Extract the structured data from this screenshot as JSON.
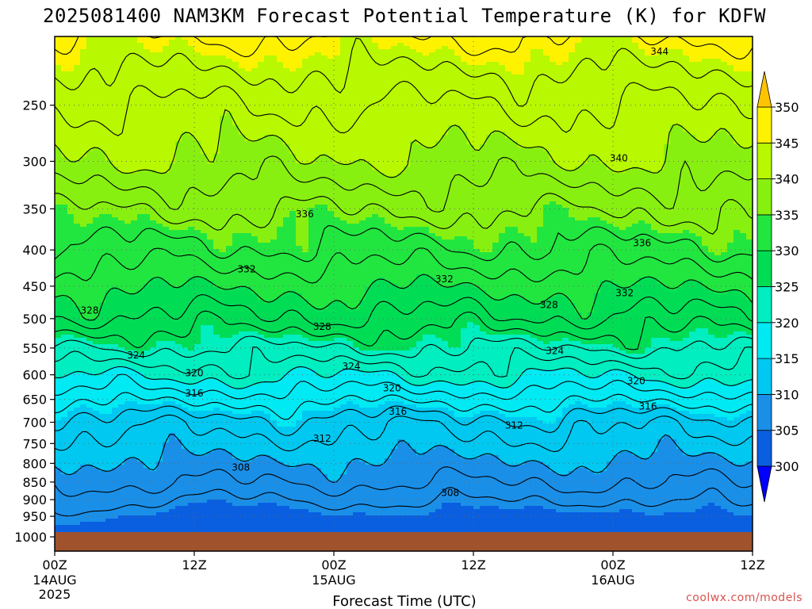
{
  "title": "2025081400 NAM3KM Forecast Potential Temperature (K) for KDFW",
  "credit": "coolwx.com/models",
  "chart_data": {
    "type": "heatmap",
    "title": "2025081400 NAM3KM Forecast Potential Temperature (K) for KDFW",
    "xlabel": "Forecast Time (UTC)",
    "ylabel": "",
    "y_scale": "log-pressure",
    "y_range_hpa": [
      1000,
      200
    ],
    "y_ticks": [
      250,
      300,
      350,
      400,
      450,
      500,
      550,
      600,
      650,
      700,
      750,
      800,
      850,
      900,
      950,
      1000
    ],
    "x_range_hours": [
      0,
      60
    ],
    "x_ticks": [
      {
        "hour": 0,
        "label": "00Z",
        "date": "14AUG",
        "year": "2025"
      },
      {
        "hour": 12,
        "label": "12Z",
        "date": "",
        "year": ""
      },
      {
        "hour": 24,
        "label": "00Z",
        "date": "15AUG",
        "year": ""
      },
      {
        "hour": 36,
        "label": "12Z",
        "date": "",
        "year": ""
      },
      {
        "hour": 48,
        "label": "00Z",
        "date": "16AUG",
        "year": ""
      },
      {
        "hour": 60,
        "label": "12Z",
        "date": "",
        "year": ""
      }
    ],
    "grid": true,
    "colorbar": {
      "placement": "right",
      "labels": [
        "300",
        "305",
        "310",
        "315",
        "320",
        "325",
        "330",
        "335",
        "340",
        "345",
        "350"
      ],
      "colors": [
        "#0000ff",
        "#0a5fe0",
        "#1a8fe8",
        "#00c8f0",
        "#00eaf4",
        "#00eec0",
        "#00dd55",
        "#22e640",
        "#88f010",
        "#b8f800",
        "#fff200",
        "#ffc400"
      ]
    },
    "ground_color": "#a0522d",
    "contour_labels": [
      {
        "value": "344",
        "hour": 52.0,
        "p": 210
      },
      {
        "value": "340",
        "hour": 48.5,
        "p": 297
      },
      {
        "value": "336",
        "hour": 21.5,
        "p": 356
      },
      {
        "value": "336",
        "hour": 50.5,
        "p": 391
      },
      {
        "value": "332",
        "hour": 16.5,
        "p": 426
      },
      {
        "value": "332",
        "hour": 33.5,
        "p": 440
      },
      {
        "value": "332",
        "hour": 49.0,
        "p": 460
      },
      {
        "value": "328",
        "hour": 3.0,
        "p": 487
      },
      {
        "value": "328",
        "hour": 23.0,
        "p": 513
      },
      {
        "value": "328",
        "hour": 42.5,
        "p": 478
      },
      {
        "value": "324",
        "hour": 7.0,
        "p": 563
      },
      {
        "value": "324",
        "hour": 25.5,
        "p": 584
      },
      {
        "value": "324",
        "hour": 43.0,
        "p": 555
      },
      {
        "value": "320",
        "hour": 12.0,
        "p": 597
      },
      {
        "value": "320",
        "hour": 29.0,
        "p": 627
      },
      {
        "value": "320",
        "hour": 50.0,
        "p": 612
      },
      {
        "value": "316",
        "hour": 12.0,
        "p": 637
      },
      {
        "value": "316",
        "hour": 29.5,
        "p": 676
      },
      {
        "value": "316",
        "hour": 51.0,
        "p": 665
      },
      {
        "value": "312",
        "hour": 23.0,
        "p": 738
      },
      {
        "value": "312",
        "hour": 39.5,
        "p": 707
      },
      {
        "value": "308",
        "hour": 16.0,
        "p": 811
      },
      {
        "value": "308",
        "hour": 34.0,
        "p": 880
      }
    ]
  }
}
